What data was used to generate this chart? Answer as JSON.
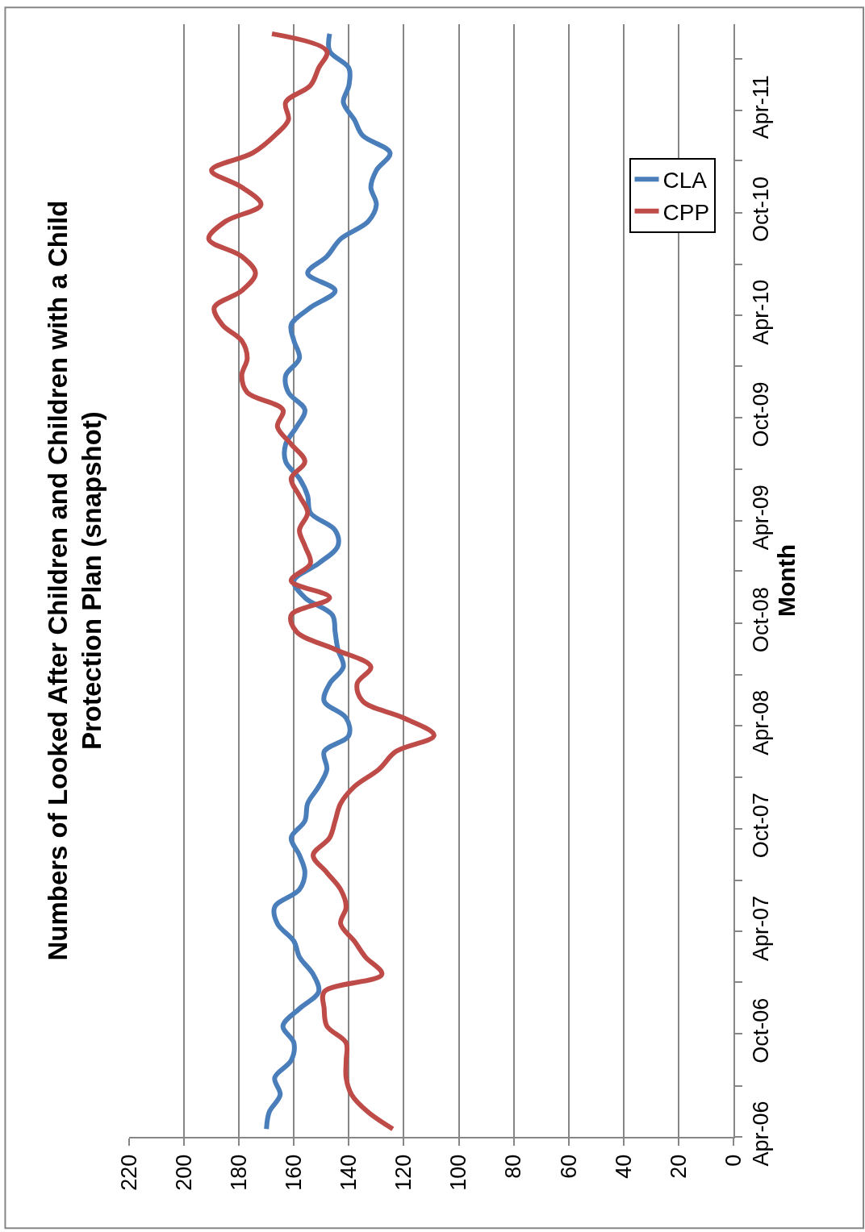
{
  "chart_data": {
    "type": "line",
    "title": "Numbers of Looked After Children and Children with a Child\nProtection Plan (snapshot)",
    "ylabel": "Month",
    "x": [
      "2006-04-15",
      "2006-05-15",
      "2006-06-15",
      "2006-07-15",
      "2006-08-15",
      "2006-09-15",
      "2006-10-15",
      "2006-11-15",
      "2006-12-15",
      "2007-01-15",
      "2007-02-15",
      "2007-03-15",
      "2007-04-15",
      "2007-05-15",
      "2007-06-15",
      "2007-07-15",
      "2007-08-15",
      "2007-09-15",
      "2007-10-15",
      "2007-11-15",
      "2007-12-15",
      "2008-01-15",
      "2008-02-15",
      "2008-03-15",
      "2008-04-15",
      "2008-05-15",
      "2008-06-15",
      "2008-07-15",
      "2008-08-15",
      "2008-09-15",
      "2008-10-15",
      "2008-11-15",
      "2008-12-15",
      "2009-01-15",
      "2009-02-15",
      "2009-03-15",
      "2009-04-15",
      "2009-05-15",
      "2009-06-15",
      "2009-07-15",
      "2009-08-15",
      "2009-09-15",
      "2009-10-15",
      "2009-11-15",
      "2009-12-15",
      "2010-01-15",
      "2010-02-15",
      "2010-03-15",
      "2010-04-15",
      "2010-05-15",
      "2010-06-15",
      "2010-07-15",
      "2010-08-15",
      "2010-09-15",
      "2010-10-15",
      "2010-11-15",
      "2010-12-15",
      "2011-01-15",
      "2011-02-15",
      "2011-03-15",
      "2011-04-15",
      "2011-05-15",
      "2011-06-15",
      "2011-07-15",
      "2011-08-15"
    ],
    "series": [
      {
        "name": "CLA",
        "color": "#4a7ebb",
        "values": [
          170,
          169,
          165,
          167,
          161,
          160,
          164,
          158,
          151,
          153,
          158,
          160,
          166,
          167,
          158,
          156,
          158,
          161,
          156,
          155,
          151,
          148,
          149,
          140,
          141,
          149,
          147,
          142,
          144,
          145,
          146,
          156,
          160,
          151,
          144,
          145,
          154,
          155,
          158,
          163,
          163,
          159,
          156,
          162,
          163,
          158,
          160,
          161,
          154,
          145,
          155,
          148,
          143,
          133,
          130,
          132,
          130,
          125,
          135,
          138,
          142,
          140,
          140,
          147,
          147
        ]
      },
      {
        "name": "CPP",
        "color": "#be4b48",
        "values": [
          124,
          133,
          139,
          141,
          141,
          141,
          148,
          149,
          149,
          128,
          134,
          138,
          143,
          141,
          143,
          148,
          153,
          147,
          145,
          143,
          138,
          129,
          123,
          109,
          120,
          135,
          137,
          132,
          145,
          159,
          161,
          147,
          161,
          154,
          156,
          158,
          155,
          158,
          161,
          156,
          161,
          166,
          164,
          177,
          179,
          177,
          179,
          186,
          189,
          179,
          174,
          179,
          191,
          185,
          172,
          179,
          190,
          175,
          167,
          162,
          163,
          154,
          151,
          148,
          168
        ]
      }
    ],
    "orientation": "horizontal",
    "ylim": [
      "2006-04-01",
      "2011-09-01"
    ],
    "yticks": [
      {
        "value": "2006-04-01",
        "label": "Apr-06"
      },
      {
        "value": "2006-07-01",
        "label": null
      },
      {
        "value": "2006-10-01",
        "label": "Oct-06"
      },
      {
        "value": "2007-01-01",
        "label": null
      },
      {
        "value": "2007-04-01",
        "label": "Apr-07"
      },
      {
        "value": "2007-07-01",
        "label": null
      },
      {
        "value": "2007-10-01",
        "label": "Oct-07"
      },
      {
        "value": "2008-01-01",
        "label": null
      },
      {
        "value": "2008-04-01",
        "label": "Apr-08"
      },
      {
        "value": "2008-07-01",
        "label": null
      },
      {
        "value": "2008-10-01",
        "label": "Oct-08"
      },
      {
        "value": "2009-01-01",
        "label": null
      },
      {
        "value": "2009-04-01",
        "label": "Apr-09"
      },
      {
        "value": "2009-07-01",
        "label": null
      },
      {
        "value": "2009-10-01",
        "label": "Oct-09"
      },
      {
        "value": "2010-01-01",
        "label": null
      },
      {
        "value": "2010-04-01",
        "label": "Apr-10"
      },
      {
        "value": "2010-07-01",
        "label": null
      },
      {
        "value": "2010-10-01",
        "label": "Oct-10"
      },
      {
        "value": "2011-01-01",
        "label": null
      },
      {
        "value": "2011-04-01",
        "label": "Apr-11"
      },
      {
        "value": "2011-07-01",
        "label": null
      }
    ],
    "xlim": [
      220,
      0
    ],
    "xticks": [
      0,
      20,
      40,
      60,
      80,
      100,
      120,
      140,
      160,
      180,
      200,
      220
    ],
    "grid": "x",
    "legend": "top right",
    "marker": "none",
    "line_style": "solid"
  }
}
